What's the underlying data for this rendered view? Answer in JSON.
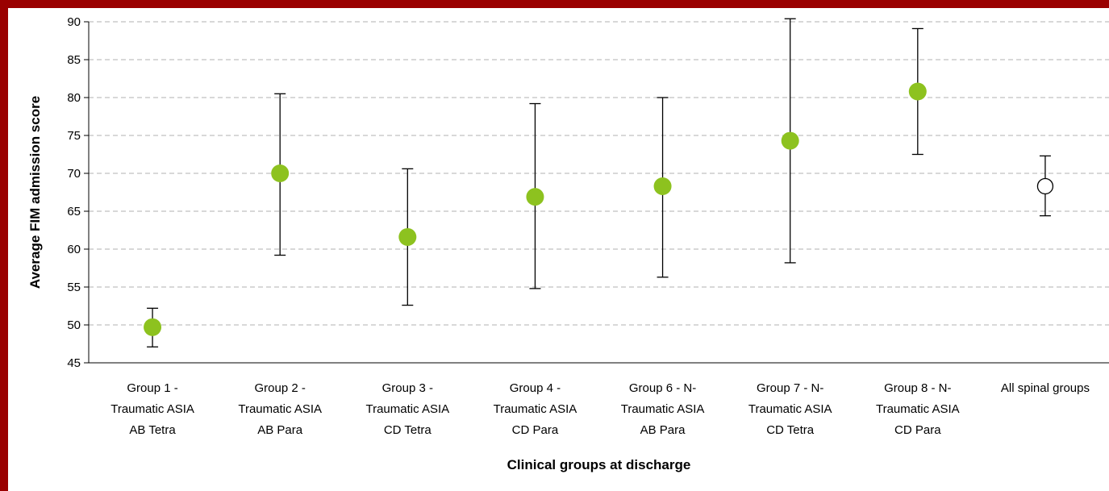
{
  "chart_data": {
    "type": "scatter",
    "xlabel": "Clinical groups at discharge",
    "ylabel": "Average FIM admission score",
    "ylim": [
      45,
      90
    ],
    "yticks": [
      45,
      50,
      55,
      60,
      65,
      70,
      75,
      80,
      85,
      90
    ],
    "grid": true,
    "categories": [
      [
        "Group 1 -",
        "Traumatic ASIA",
        "AB Tetra"
      ],
      [
        "Group 2 -",
        "Traumatic ASIA",
        "AB Para"
      ],
      [
        "Group 3 -",
        "Traumatic ASIA",
        "CD Tetra"
      ],
      [
        "Group 4 -",
        "Traumatic ASIA",
        "CD Para"
      ],
      [
        "Group 6 - N-",
        "Traumatic ASIA",
        "AB Para"
      ],
      [
        "Group 7 - N-",
        "Traumatic ASIA",
        "CD Tetra"
      ],
      [
        "Group 8 - N-",
        "Traumatic ASIA",
        "CD Para"
      ],
      [
        "All spinal groups"
      ]
    ],
    "points": [
      {
        "value": 49.7,
        "lower": 47.1,
        "upper": 52.2,
        "marker": "filled"
      },
      {
        "value": 70.0,
        "lower": 59.2,
        "upper": 80.5,
        "marker": "filled"
      },
      {
        "value": 61.6,
        "lower": 52.6,
        "upper": 70.6,
        "marker": "filled"
      },
      {
        "value": 66.9,
        "lower": 54.8,
        "upper": 79.2,
        "marker": "filled"
      },
      {
        "value": 68.3,
        "lower": 56.3,
        "upper": 80.0,
        "marker": "filled"
      },
      {
        "value": 74.3,
        "lower": 58.2,
        "upper": 90.4,
        "marker": "filled"
      },
      {
        "value": 80.8,
        "lower": 72.5,
        "upper": 89.1,
        "marker": "filled"
      },
      {
        "value": 68.3,
        "lower": 64.4,
        "upper": 72.3,
        "marker": "hollow"
      }
    ],
    "colors": {
      "filled_marker": "#8dc21f",
      "hollow_marker_fill": "#ffffff",
      "marker_stroke": "#000000",
      "error_bar": "#000000",
      "grid": "#b0b0b0",
      "frame_border": "#9a0000"
    }
  }
}
